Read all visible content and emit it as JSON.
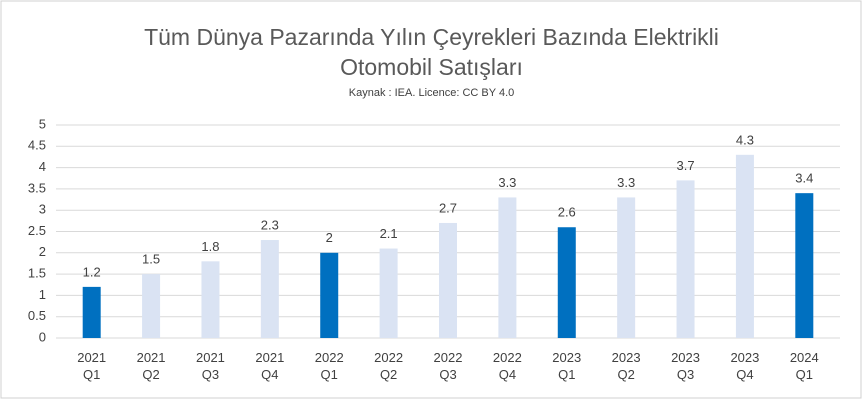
{
  "chart_data": {
    "type": "bar",
    "title": "Tüm Dünya Pazarında Yılın Çeyrekleri Bazında Elektrikli Otomobil Satışları",
    "subtitle": "Kaynak : IEA. Licence: CC BY 4.0",
    "categories": [
      "2021 Q1",
      "2021 Q2",
      "2021 Q3",
      "2021 Q4",
      "2022 Q1",
      "2022 Q2",
      "2022 Q3",
      "2022 Q4",
      "2023 Q1",
      "2023 Q2",
      "2023 Q3",
      "2023 Q4",
      "2024 Q1"
    ],
    "values": [
      1.2,
      1.5,
      1.8,
      2.3,
      2,
      2.1,
      2.7,
      3.3,
      2.6,
      3.3,
      3.7,
      4.3,
      3.4
    ],
    "colors": [
      "#0070c0",
      "#dae3f3",
      "#dae3f3",
      "#dae3f3",
      "#0070c0",
      "#dae3f3",
      "#dae3f3",
      "#dae3f3",
      "#0070c0",
      "#dae3f3",
      "#dae3f3",
      "#dae3f3",
      "#0070c0"
    ],
    "ylim": [
      0,
      5
    ],
    "yticks": [
      0,
      0.5,
      1,
      1.5,
      2,
      2.5,
      3,
      3.5,
      4,
      4.5,
      5
    ],
    "grid": true
  }
}
